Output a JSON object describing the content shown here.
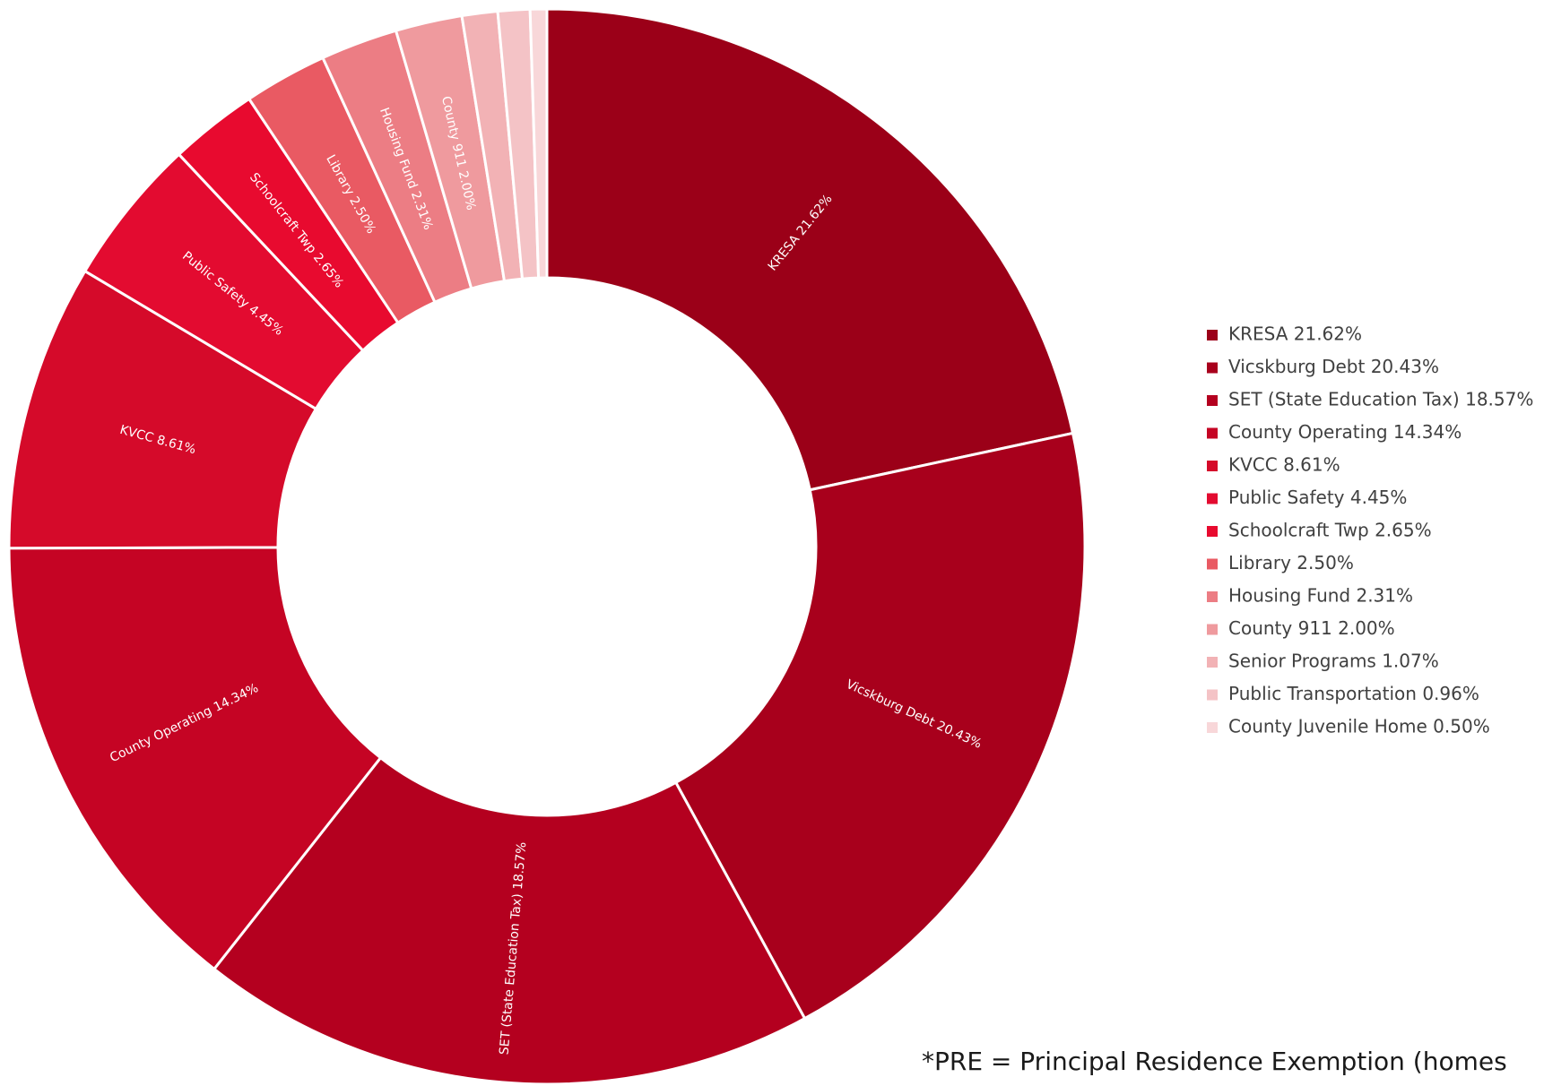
{
  "chart_data": {
    "type": "pie",
    "categories": [
      "KRESA",
      "Vicskburg Debt",
      "SET (State Education Tax)",
      "County Operating",
      "KVCC",
      "Public Safety",
      "Schoolcraft Twp",
      "Library",
      "Housing Fund",
      "County 911",
      "Senior Programs",
      "Public Transportation",
      "County Juvenile Home"
    ],
    "values": [
      21.62,
      20.43,
      18.57,
      14.34,
      8.61,
      4.45,
      2.65,
      2.5,
      2.31,
      2.0,
      1.07,
      0.96,
      0.5
    ],
    "labels": [
      "KRESA 21.62%",
      "Vicskburg Debt 20.43%",
      "SET (State Education Tax) 18.57%",
      "County Operating 14.34%",
      "KVCC 8.61%",
      "Public Safety 4.45%",
      "Schoolcraft Twp 2.65%",
      "Library 2.50%",
      "Housing Fund 2.31%",
      "County 911 2.00%",
      "Senior Programs 1.07%",
      "Public Transportation 0.96%",
      "County Juvenile Home 0.50%"
    ],
    "slice_labels_shown": [
      true,
      true,
      true,
      true,
      true,
      true,
      true,
      true,
      true,
      true,
      false,
      false,
      false
    ],
    "colors": [
      "#9b0018",
      "#a8001c",
      "#b4001f",
      "#c50424",
      "#d50a2a",
      "#e30b30",
      "#e80a2f",
      "#e95a63",
      "#ec7d84",
      "#ef9a9e",
      "#f2b2b5",
      "#f4c3c6",
      "#f8d7d9"
    ],
    "donut": true,
    "legend_position": "right"
  },
  "footnote": "*PRE = Principal Residence Exemption (homes"
}
